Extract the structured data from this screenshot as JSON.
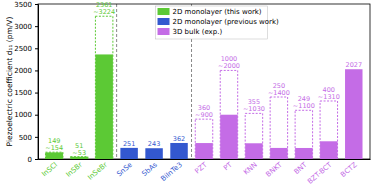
{
  "chart_data": {
    "type": "bar",
    "ylabel": "Piezoelectric coefficient d₁₁ (pm/V)",
    "categories": [
      "InSCl",
      "InSBr",
      "InSeBr",
      "SnSe",
      "SbAs",
      "BiInTe3",
      "PZT",
      "PT",
      "KNN",
      "BNKT",
      "BNT",
      "BZT-BCT",
      "BCTZ"
    ],
    "ylim": [
      0,
      3500
    ],
    "yticks": [
      0,
      500,
      1000,
      1500,
      2000,
      2500,
      3000,
      3500
    ],
    "data_labels": true,
    "legend": "top",
    "series": [
      {
        "name": "2D monolayer (this work)",
        "color": "#5cc935",
        "values": [
          149,
          51,
          2361,
          null,
          null,
          null,
          null,
          null,
          null,
          null,
          null,
          null,
          null
        ],
        "upper_values": [
          154,
          53,
          3224,
          null,
          null,
          null,
          null,
          null,
          null,
          null,
          null,
          null,
          null
        ],
        "upper_labels": [
          "~154",
          "~53",
          "~3224",
          null,
          null,
          null,
          null,
          null,
          null,
          null,
          null,
          null,
          null
        ]
      },
      {
        "name": "2D monolayer (previous work)",
        "color": "#3358cf",
        "values": [
          null,
          null,
          null,
          251,
          243,
          362,
          null,
          null,
          null,
          null,
          null,
          null,
          null
        ],
        "upper_values": [
          null,
          null,
          null,
          null,
          null,
          null,
          null,
          null,
          null,
          null,
          null,
          null,
          null
        ],
        "upper_labels": [
          null,
          null,
          null,
          null,
          null,
          null,
          null,
          null,
          null,
          null,
          null,
          null,
          null
        ]
      },
      {
        "name": "3D bulk (exp.)",
        "color": "#c46ce6",
        "values": [
          null,
          null,
          null,
          null,
          null,
          null,
          360,
          1000,
          355,
          250,
          249,
          400,
          2027
        ],
        "upper_values": [
          null,
          null,
          null,
          null,
          null,
          null,
          900,
          2000,
          1030,
          1400,
          1100,
          1310,
          null
        ],
        "upper_labels": [
          null,
          null,
          null,
          null,
          null,
          null,
          "~900",
          "~2000",
          "~1030",
          "~1400",
          "~1100",
          "~1310",
          null
        ]
      }
    ]
  }
}
